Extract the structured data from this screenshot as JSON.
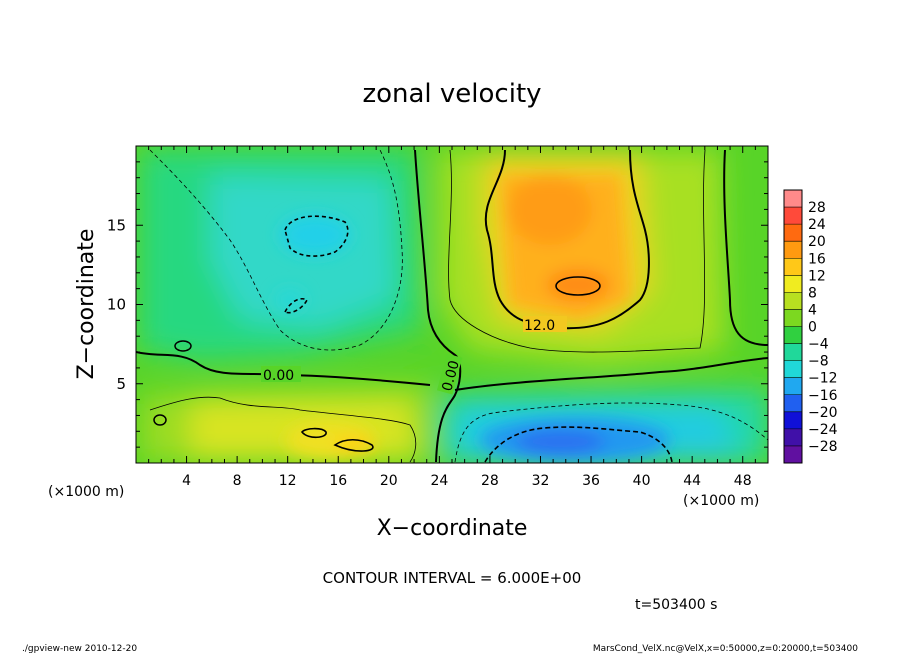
{
  "chart_data": {
    "type": "heatmap",
    "title": "zonal velocity",
    "xlabel": "X−coordinate",
    "ylabel": "Z−coordinate",
    "x_unit_label": "(×1000 m)",
    "y_unit_label": "(×1000 m)",
    "xlim": [
      0,
      50
    ],
    "ylim": [
      0,
      20
    ],
    "x_ticks": [
      "4",
      "8",
      "12",
      "16",
      "20",
      "24",
      "28",
      "32",
      "36",
      "40",
      "44",
      "48"
    ],
    "y_ticks": [
      "5",
      "10",
      "15"
    ],
    "colorbar": {
      "labels": [
        "28",
        "24",
        "20",
        "16",
        "12",
        "8",
        "4",
        "0",
        "−4",
        "−8",
        "−12",
        "−16",
        "−20",
        "−24",
        "−28"
      ],
      "colors": [
        "#ff8a8a",
        "#ff4a3a",
        "#ff6a10",
        "#ff9a10",
        "#ffc818",
        "#f0ec20",
        "#b8e020",
        "#7cd820",
        "#30d040",
        "#20d89a",
        "#20d8d8",
        "#20a8f0",
        "#2060f0",
        "#1010d8",
        "#4010a8",
        "#6010a0"
      ]
    },
    "contour_labels": [
      "0.00",
      "0.00",
      "12.0"
    ],
    "contour_interval_text": "CONTOUR INTERVAL = 6.000E+00",
    "time_text": "t=503400  s",
    "footer_left": "./gpview-new   2010-12-20",
    "footer_right": "MarsCond_VelX.nc@VelX,x=0:50000,z=0:20000,t=503400",
    "regions": [
      {
        "name": "left-upper",
        "value": -6
      },
      {
        "name": "left-upper-core",
        "value": -12
      },
      {
        "name": "right-upper",
        "value": 14
      },
      {
        "name": "right-upper-core",
        "value": 18
      },
      {
        "name": "lower-left",
        "value": 6
      },
      {
        "name": "lower-left-core",
        "value": 12
      },
      {
        "name": "lower-right",
        "value": -8
      },
      {
        "name": "lower-right-core",
        "value": -14
      }
    ]
  }
}
